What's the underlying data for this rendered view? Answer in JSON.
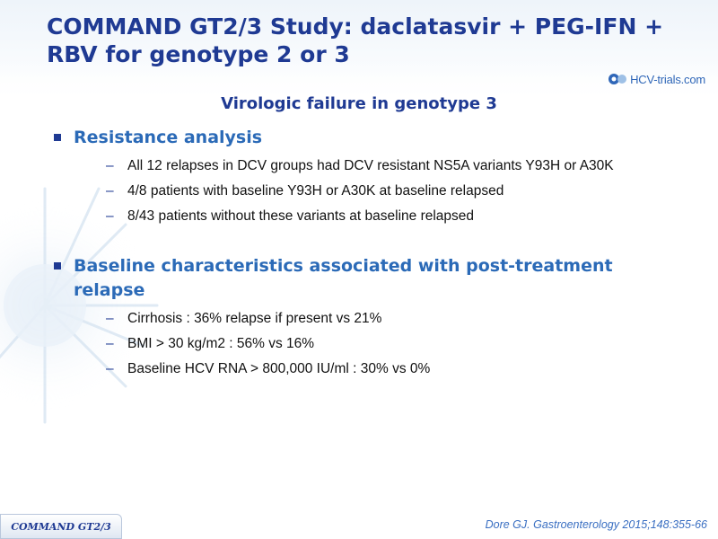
{
  "header": {
    "title": "COMMAND GT2/3 Study: daclatasvir + PEG-IFN + RBV for genotype 2 or 3",
    "logo_text": "HCV-trials.com"
  },
  "subtitle": "Virologic failure in genotype 3",
  "sections": [
    {
      "heading": "Resistance analysis",
      "items": [
        "All 12 relapses in DCV groups had DCV resistant NS5A variants Y93H or A30K",
        "4/8 patients with baseline Y93H or A30K at baseline relapsed",
        "8/43 patients without these variants at baseline relapsed"
      ]
    },
    {
      "heading": "Baseline characteristics associated with post-treatment relapse",
      "items": [
        "Cirrhosis : 36% relapse if present vs 21%",
        "BMI > 30 kg/m2 : 56% vs 16%",
        "Baseline HCV RNA > 800,000 IU/ml : 30% vs 0%"
      ]
    }
  ],
  "footer": {
    "tab_label": "COMMAND GT2/3",
    "citation": "Dore GJ. Gastroenterology 2015;148:355-66"
  },
  "colors": {
    "title": "#1f3a93",
    "heading": "#2b6ab7",
    "citation": "#3a6fc2"
  }
}
